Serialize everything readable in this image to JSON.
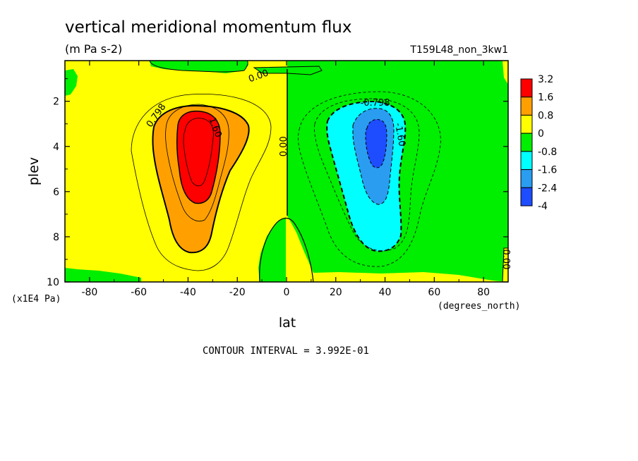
{
  "chart_data": {
    "type": "heatmap",
    "title": "vertical meridional momentum flux",
    "units": "(m Pa s-2)",
    "run_label": "T159L48_non_3kw1",
    "xlabel": "lat",
    "xunits": "(degrees_north)",
    "ylabel": "plev",
    "yunits": "(x1E4 Pa)",
    "xlim": [
      -90,
      90
    ],
    "ylim": [
      10,
      0.2
    ],
    "x_ticks": [
      -80,
      -60,
      -40,
      -20,
      0,
      20,
      40,
      60,
      80
    ],
    "y_ticks": [
      2,
      4,
      6,
      8,
      10
    ],
    "colorbar_levels": [
      "3.2",
      "1.6",
      "0.8",
      "0",
      "-0.8",
      "-1.6",
      "-2.4",
      "-4"
    ],
    "colorbar_colors": [
      "#ff0000",
      "#ffa000",
      "#ffff00",
      "#00ee00",
      "#00ffff",
      "#2a9df0",
      "#1e4cff"
    ],
    "contour_labels": [
      {
        "text": "0.00",
        "lat": -11,
        "plev": 1.0
      },
      {
        "text": "0.798",
        "lat": -52,
        "plev": 2.7
      },
      {
        "text": "1.60",
        "lat": -30,
        "plev": 3.2
      },
      {
        "text": "0.00",
        "lat": 0,
        "plev": 4.0
      },
      {
        "text": "-0.798",
        "lat": 36,
        "plev": 2.2
      },
      {
        "text": "-1.60",
        "lat": 45,
        "plev": 3.5
      },
      {
        "text": "0.00",
        "lat": 88,
        "plev": 9.0
      }
    ],
    "contour_interval_text": "CONTOUR INTERVAL = 3.992E-01",
    "features": [
      {
        "name": "positive maximum",
        "lat": -36,
        "plev": 4.0,
        "value": 3.2
      },
      {
        "name": "negative minimum",
        "lat": 35,
        "plev": 4.0,
        "value": -2.4
      }
    ],
    "grid": false,
    "legend_placement": "right"
  }
}
